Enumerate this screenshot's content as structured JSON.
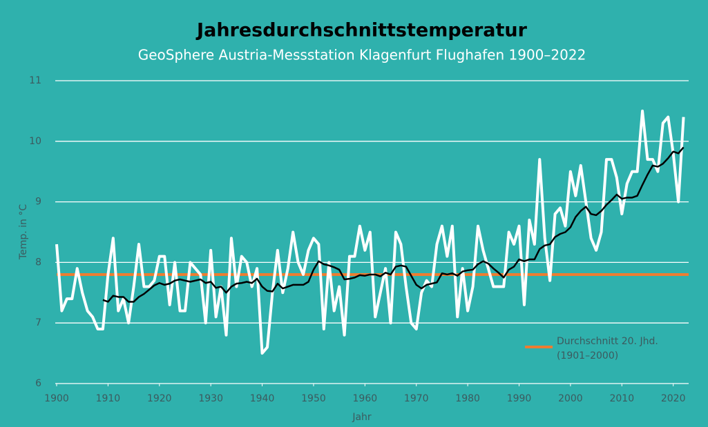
{
  "chart_data": {
    "type": "line",
    "title": "Jahresdurchschnittstemperatur",
    "subtitle": "GeoSphere Austria-Messstation Klagenfurt Flughafen 1900–2022",
    "x_label": "Jahr",
    "y_label": "Temp. in °C",
    "x": [
      1900,
      1901,
      1902,
      1903,
      1904,
      1905,
      1906,
      1907,
      1908,
      1909,
      1910,
      1911,
      1912,
      1913,
      1914,
      1915,
      1916,
      1917,
      1918,
      1919,
      1920,
      1921,
      1922,
      1923,
      1924,
      1925,
      1926,
      1927,
      1928,
      1929,
      1930,
      1931,
      1932,
      1933,
      1934,
      1935,
      1936,
      1937,
      1938,
      1939,
      1940,
      1941,
      1942,
      1943,
      1944,
      1945,
      1946,
      1947,
      1948,
      1949,
      1950,
      1951,
      1952,
      1953,
      1954,
      1955,
      1956,
      1957,
      1958,
      1959,
      1960,
      1961,
      1962,
      1963,
      1964,
      1965,
      1966,
      1967,
      1968,
      1969,
      1970,
      1971,
      1972,
      1973,
      1974,
      1975,
      1976,
      1977,
      1978,
      1979,
      1980,
      1981,
      1982,
      1983,
      1984,
      1985,
      1986,
      1987,
      1988,
      1989,
      1990,
      1991,
      1992,
      1993,
      1994,
      1995,
      1996,
      1997,
      1998,
      1999,
      2000,
      2001,
      2002,
      2003,
      2004,
      2005,
      2006,
      2007,
      2008,
      2009,
      2010,
      2011,
      2012,
      2013,
      2014,
      2015,
      2016,
      2017,
      2018,
      2019,
      2020,
      2021,
      2022
    ],
    "series": [
      {
        "color": "#ffffff",
        "values": [
          8.3,
          7.2,
          7.4,
          7.4,
          7.9,
          7.5,
          7.2,
          7.1,
          6.9,
          6.9,
          7.8,
          8.4,
          7.2,
          7.4,
          7.0,
          7.6,
          8.3,
          7.6,
          7.6,
          7.7,
          8.1,
          8.1,
          7.3,
          8.0,
          7.2,
          7.2,
          8.0,
          7.9,
          7.8,
          7.0,
          8.2,
          7.1,
          7.6,
          6.8,
          8.4,
          7.6,
          8.1,
          8.0,
          7.6,
          7.9,
          6.5,
          6.6,
          7.5,
          8.2,
          7.5,
          7.9,
          8.5,
          8.0,
          7.8,
          8.2,
          8.4,
          8.3,
          6.9,
          8.0,
          7.2,
          7.6,
          6.8,
          8.1,
          8.1,
          8.6,
          8.2,
          8.5,
          7.1,
          7.5,
          7.9,
          7.0,
          8.5,
          8.3,
          7.6,
          7.0,
          6.9,
          7.5,
          7.7,
          7.6,
          8.3,
          8.6,
          8.1,
          8.6,
          7.1,
          7.9,
          7.2,
          7.6,
          8.6,
          8.2,
          7.9,
          7.6,
          7.6,
          7.6,
          8.5,
          8.3,
          8.6,
          7.3,
          8.7,
          8.3,
          9.7,
          8.4,
          7.7,
          8.8,
          8.9,
          8.6,
          9.5,
          9.1,
          9.6,
          9.0,
          8.4,
          8.2,
          8.5,
          9.7,
          9.7,
          9.4,
          8.8,
          9.3,
          9.5,
          9.5,
          10.5,
          9.7,
          9.7,
          9.5,
          10.3,
          10.4,
          9.8,
          9.0,
          10.4
        ]
      },
      {
        "color": "#000000",
        "values": [
          null,
          null,
          null,
          null,
          null,
          null,
          null,
          null,
          null,
          7.38,
          7.35,
          7.45,
          7.43,
          7.43,
          7.35,
          7.35,
          7.43,
          7.48,
          7.55,
          7.62,
          7.66,
          7.63,
          7.65,
          7.7,
          7.72,
          7.7,
          7.68,
          7.7,
          7.72,
          7.66,
          7.68,
          7.58,
          7.6,
          7.5,
          7.6,
          7.65,
          7.66,
          7.68,
          7.66,
          7.73,
          7.6,
          7.53,
          7.52,
          7.65,
          7.57,
          7.6,
          7.63,
          7.63,
          7.63,
          7.68,
          7.88,
          8.02,
          7.97,
          7.95,
          7.92,
          7.88,
          7.72,
          7.73,
          7.75,
          7.79,
          7.78,
          7.8,
          7.8,
          7.77,
          7.83,
          7.8,
          7.93,
          7.95,
          7.93,
          7.78,
          7.63,
          7.57,
          7.63,
          7.65,
          7.67,
          7.82,
          7.8,
          7.82,
          7.78,
          7.85,
          7.87,
          7.88,
          7.97,
          8.02,
          7.98,
          7.9,
          7.83,
          7.75,
          7.88,
          7.93,
          8.05,
          8.02,
          8.05,
          8.05,
          8.22,
          8.28,
          8.3,
          8.42,
          8.47,
          8.5,
          8.58,
          8.75,
          8.85,
          8.92,
          8.8,
          8.78,
          8.85,
          8.95,
          9.03,
          9.12,
          9.05,
          9.07,
          9.07,
          9.1,
          9.28,
          9.45,
          9.6,
          9.58,
          9.63,
          9.72,
          9.83,
          9.8,
          9.9
        ]
      }
    ],
    "reference_line": {
      "name": "Durchschnitt 20. Jhd. (1901–2000)",
      "value": 7.8,
      "color": "#ed7d31"
    },
    "xlim": [
      1900,
      2023
    ],
    "xticks": [
      1900,
      1910,
      1920,
      1930,
      1940,
      1950,
      1960,
      1970,
      1980,
      1990,
      2000,
      2010,
      2020
    ],
    "ylim": [
      6,
      11
    ],
    "yticks": [
      6,
      7,
      8,
      9,
      10,
      11
    ],
    "grid": true
  }
}
